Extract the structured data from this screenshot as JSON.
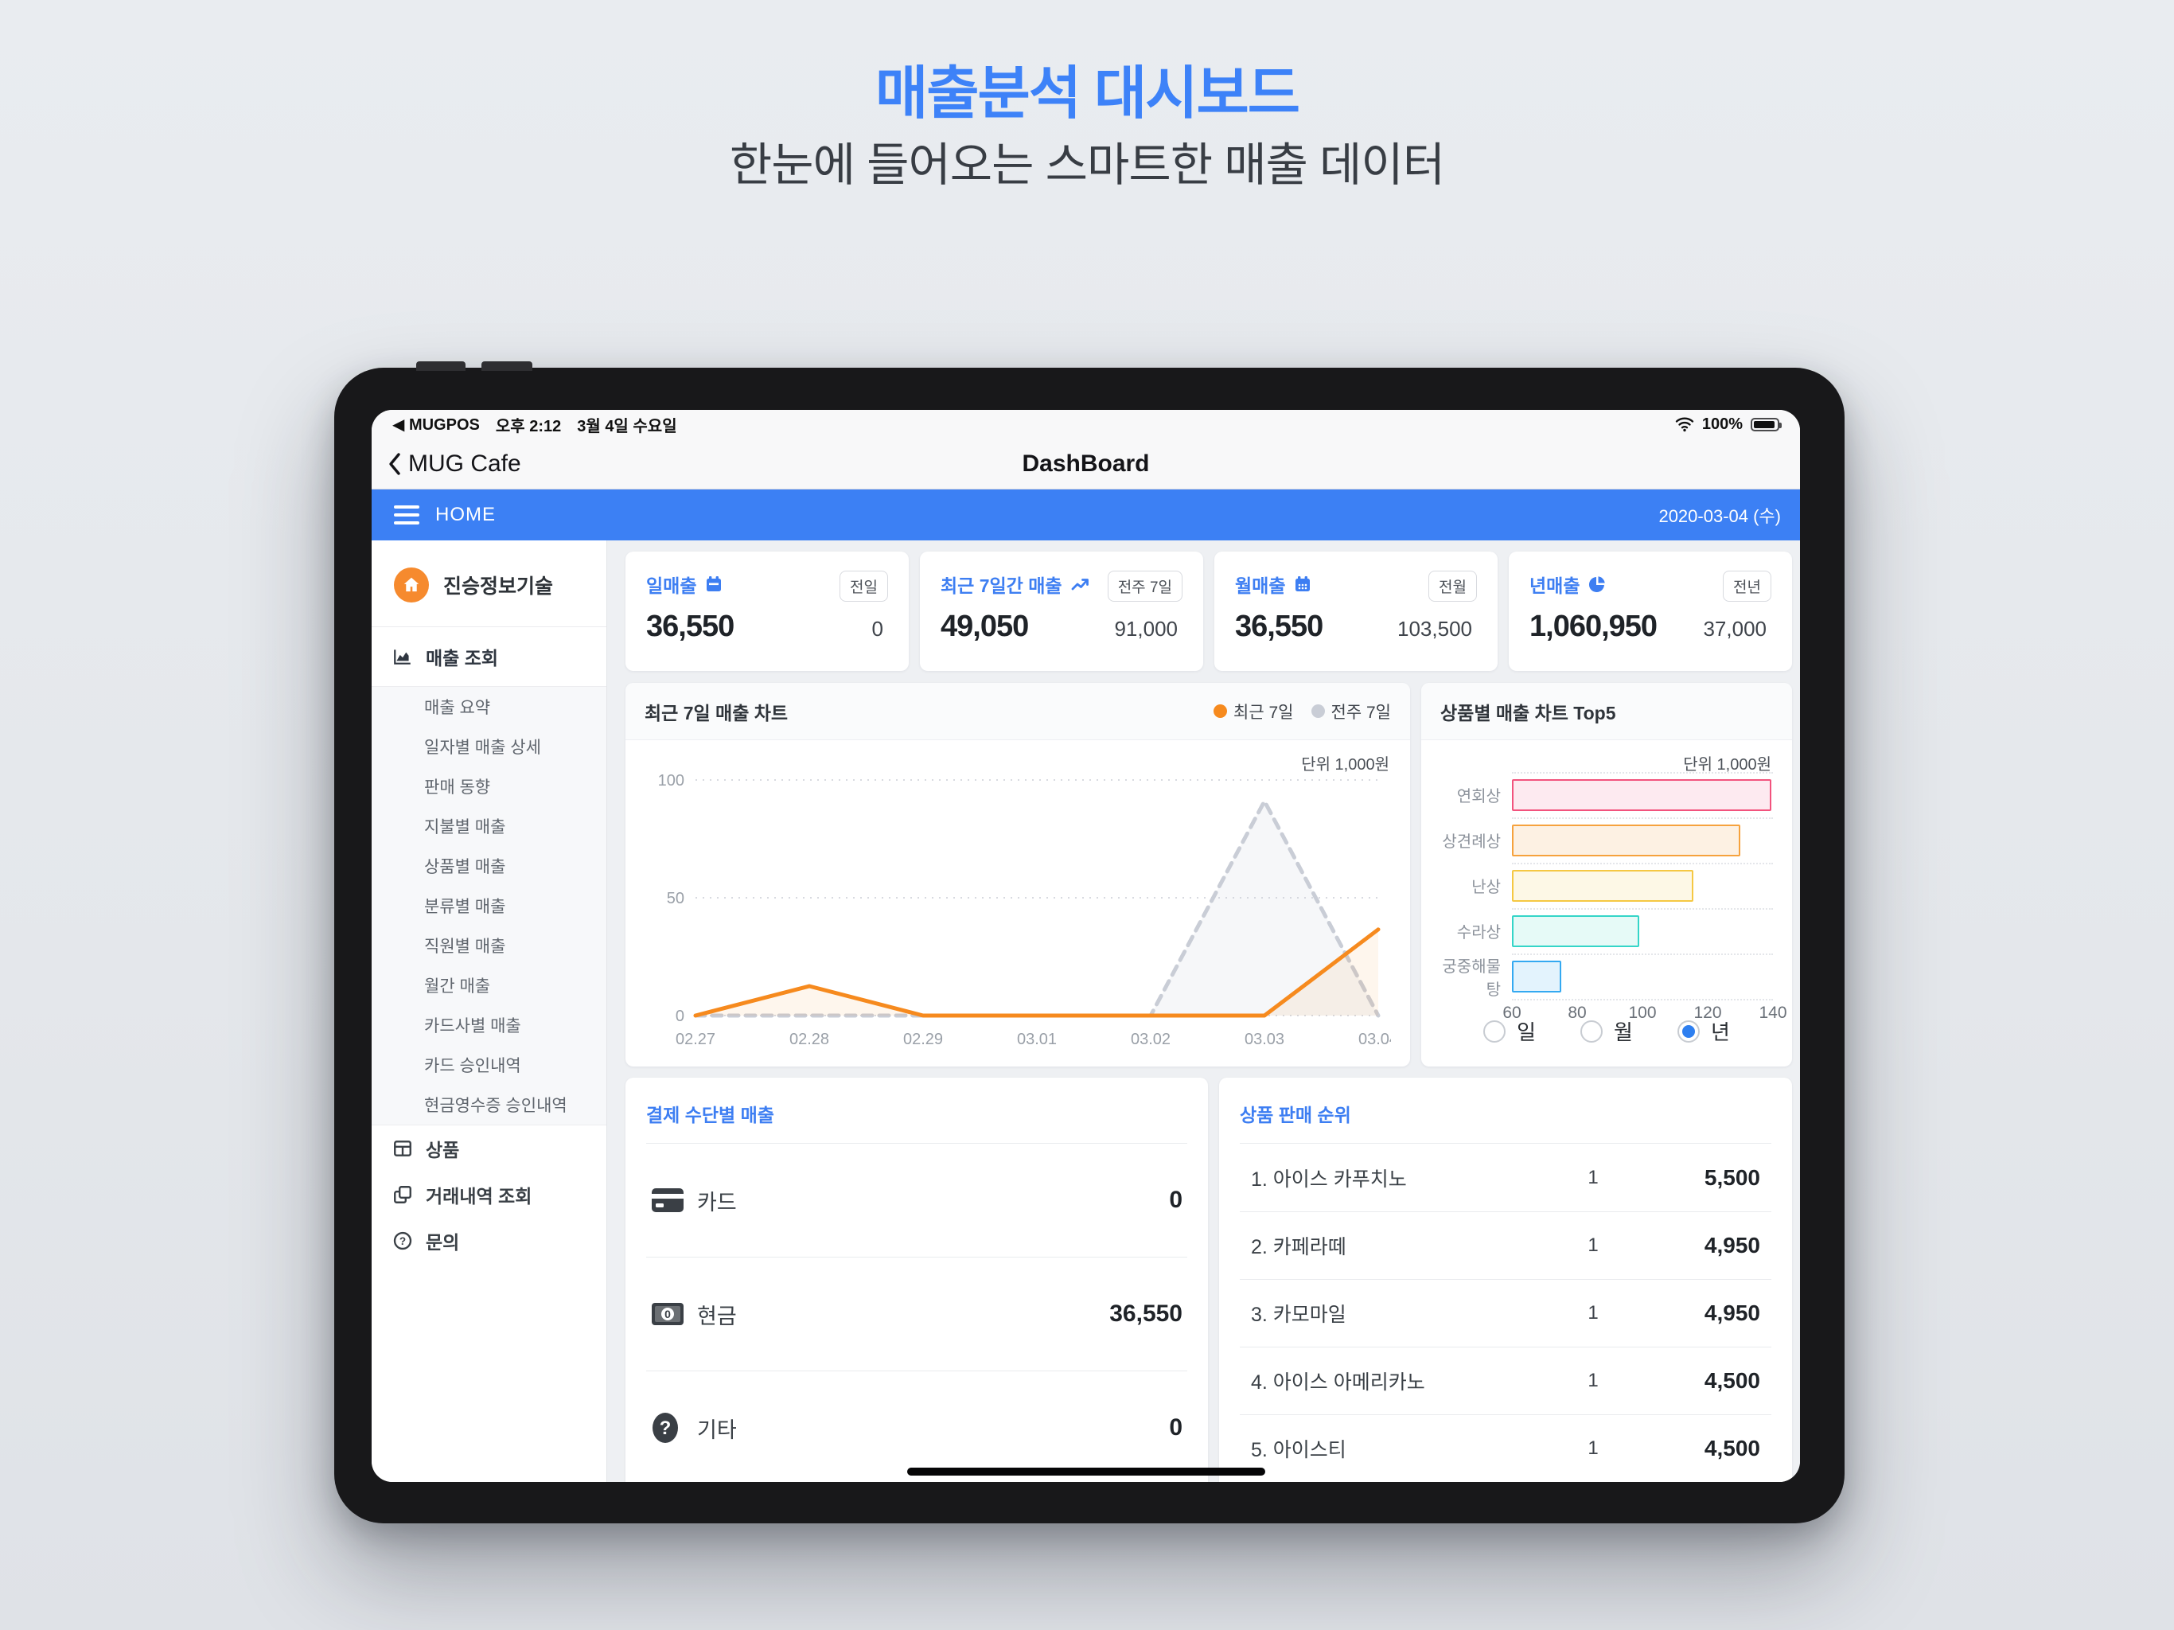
{
  "page": {
    "title": "매출분석 대시보드",
    "subtitle": "한눈에 들어오는 스마트한 매출 데이터"
  },
  "device": {
    "status_bar": {
      "back_app": "◀ MUGPOS",
      "time": "오후 2:12",
      "date": "3월 4일 수요일",
      "battery": "100%"
    },
    "nav_bar": {
      "back_label": "MUG Cafe",
      "title": "DashBoard"
    },
    "app_bar": {
      "home_label": "HOME",
      "date": "2020-03-04 (수)"
    }
  },
  "sidebar": {
    "company": "진승정보기술",
    "menu_header": "매출 조회",
    "submenu": [
      "매출 요약",
      "일자별 매출 상세",
      "판매 동향",
      "지불별 매출",
      "상품별 매출",
      "분류별 매출",
      "직원별 매출",
      "월간 매출",
      "카드사별 매출",
      "카드 승인내역",
      "현금영수증 승인내역"
    ],
    "bottom_menu": [
      {
        "icon": "grid-icon",
        "label": "상품"
      },
      {
        "icon": "copy-icon",
        "label": "거래내역 조회"
      },
      {
        "icon": "question-icon",
        "label": "문의"
      }
    ]
  },
  "stats": [
    {
      "label": "일매출",
      "icon": "calendar-day-icon",
      "badge": "전일",
      "value": "36,550",
      "compare": "0"
    },
    {
      "label": "최근 7일간 매출",
      "icon": "trend-icon",
      "badge": "전주 7일",
      "value": "49,050",
      "compare": "91,000"
    },
    {
      "label": "월매출",
      "icon": "calendar-month-icon",
      "badge": "전월",
      "value": "36,550",
      "compare": "103,500"
    },
    {
      "label": "년매출",
      "icon": "pie-icon",
      "badge": "전년",
      "value": "1,060,950",
      "compare": "37,000"
    }
  ],
  "chart_data": [
    {
      "type": "line",
      "title": "최근 7일 매출 차트",
      "unit_label": "단위 1,000원",
      "x": [
        "02.27",
        "02.28",
        "02.29",
        "03.01",
        "03.02",
        "03.03",
        "03.04"
      ],
      "series": [
        {
          "name": "최근 7일",
          "values": [
            0,
            12.5,
            0,
            0,
            0,
            0,
            36.55
          ],
          "color": "#f68a1e",
          "fill": "rgba(246,138,30,0.08)",
          "style": "solid"
        },
        {
          "name": "전주 7일",
          "values": [
            0,
            0,
            0,
            0,
            0,
            91,
            0
          ],
          "color": "#c9cdd6",
          "fill": "rgba(205,210,220,0.18)",
          "style": "dashed"
        }
      ],
      "ylim": [
        0,
        100
      ],
      "yticks": [
        0,
        50,
        100
      ],
      "grid": "dotted-horizontal",
      "legend_position": "top-right"
    },
    {
      "type": "bar",
      "title": "상품별 매출 차트 Top5",
      "unit_label": "단위 1,000원",
      "categories": [
        "연회상",
        "상견례상",
        "난상",
        "수라상",
        "궁중해물탕"
      ],
      "values": [
        139.5,
        130,
        115.5,
        99,
        75
      ],
      "xlim": [
        60,
        140
      ],
      "xticks": [
        60,
        80,
        100,
        120,
        140
      ],
      "bar_colors": [
        {
          "fill": "#fdeaf0",
          "border": "#f2537d"
        },
        {
          "fill": "#fdf1e3",
          "border": "#f6a23d"
        },
        {
          "fill": "#fdf8e6",
          "border": "#f5c843"
        },
        {
          "fill": "#e6faf7",
          "border": "#35d5c8"
        },
        {
          "fill": "#e3f3fd",
          "border": "#34a9f1"
        }
      ],
      "period_options": [
        {
          "label": "일",
          "selected": false
        },
        {
          "label": "월",
          "selected": false
        },
        {
          "label": "년",
          "selected": true
        }
      ]
    }
  ],
  "payments": {
    "title": "결제 수단별 매출",
    "rows": [
      {
        "icon": "card-icon",
        "label": "카드",
        "value": "0"
      },
      {
        "icon": "cash-icon",
        "label": "현금",
        "value": "36,550"
      },
      {
        "icon": "etc-icon",
        "label": "기타",
        "value": "0"
      }
    ]
  },
  "ranking": {
    "title": "상품 판매 순위",
    "rows": [
      {
        "name": "1. 아이스 카푸치노",
        "qty": "1",
        "price": "5,500"
      },
      {
        "name": "2. 카페라떼",
        "qty": "1",
        "price": "4,950"
      },
      {
        "name": "3. 카모마일",
        "qty": "1",
        "price": "4,950"
      },
      {
        "name": "4. 아이스 아메리카노",
        "qty": "1",
        "price": "4,500"
      },
      {
        "name": "5. 아이스티",
        "qty": "1",
        "price": "4,500"
      }
    ]
  },
  "colors": {
    "accent_blue": "#3d7ef2",
    "title_blue": "#3d82f8",
    "appbar_blue": "#3c80f4",
    "orange": "#f68a1e",
    "gray_series": "#c9cdd6"
  }
}
